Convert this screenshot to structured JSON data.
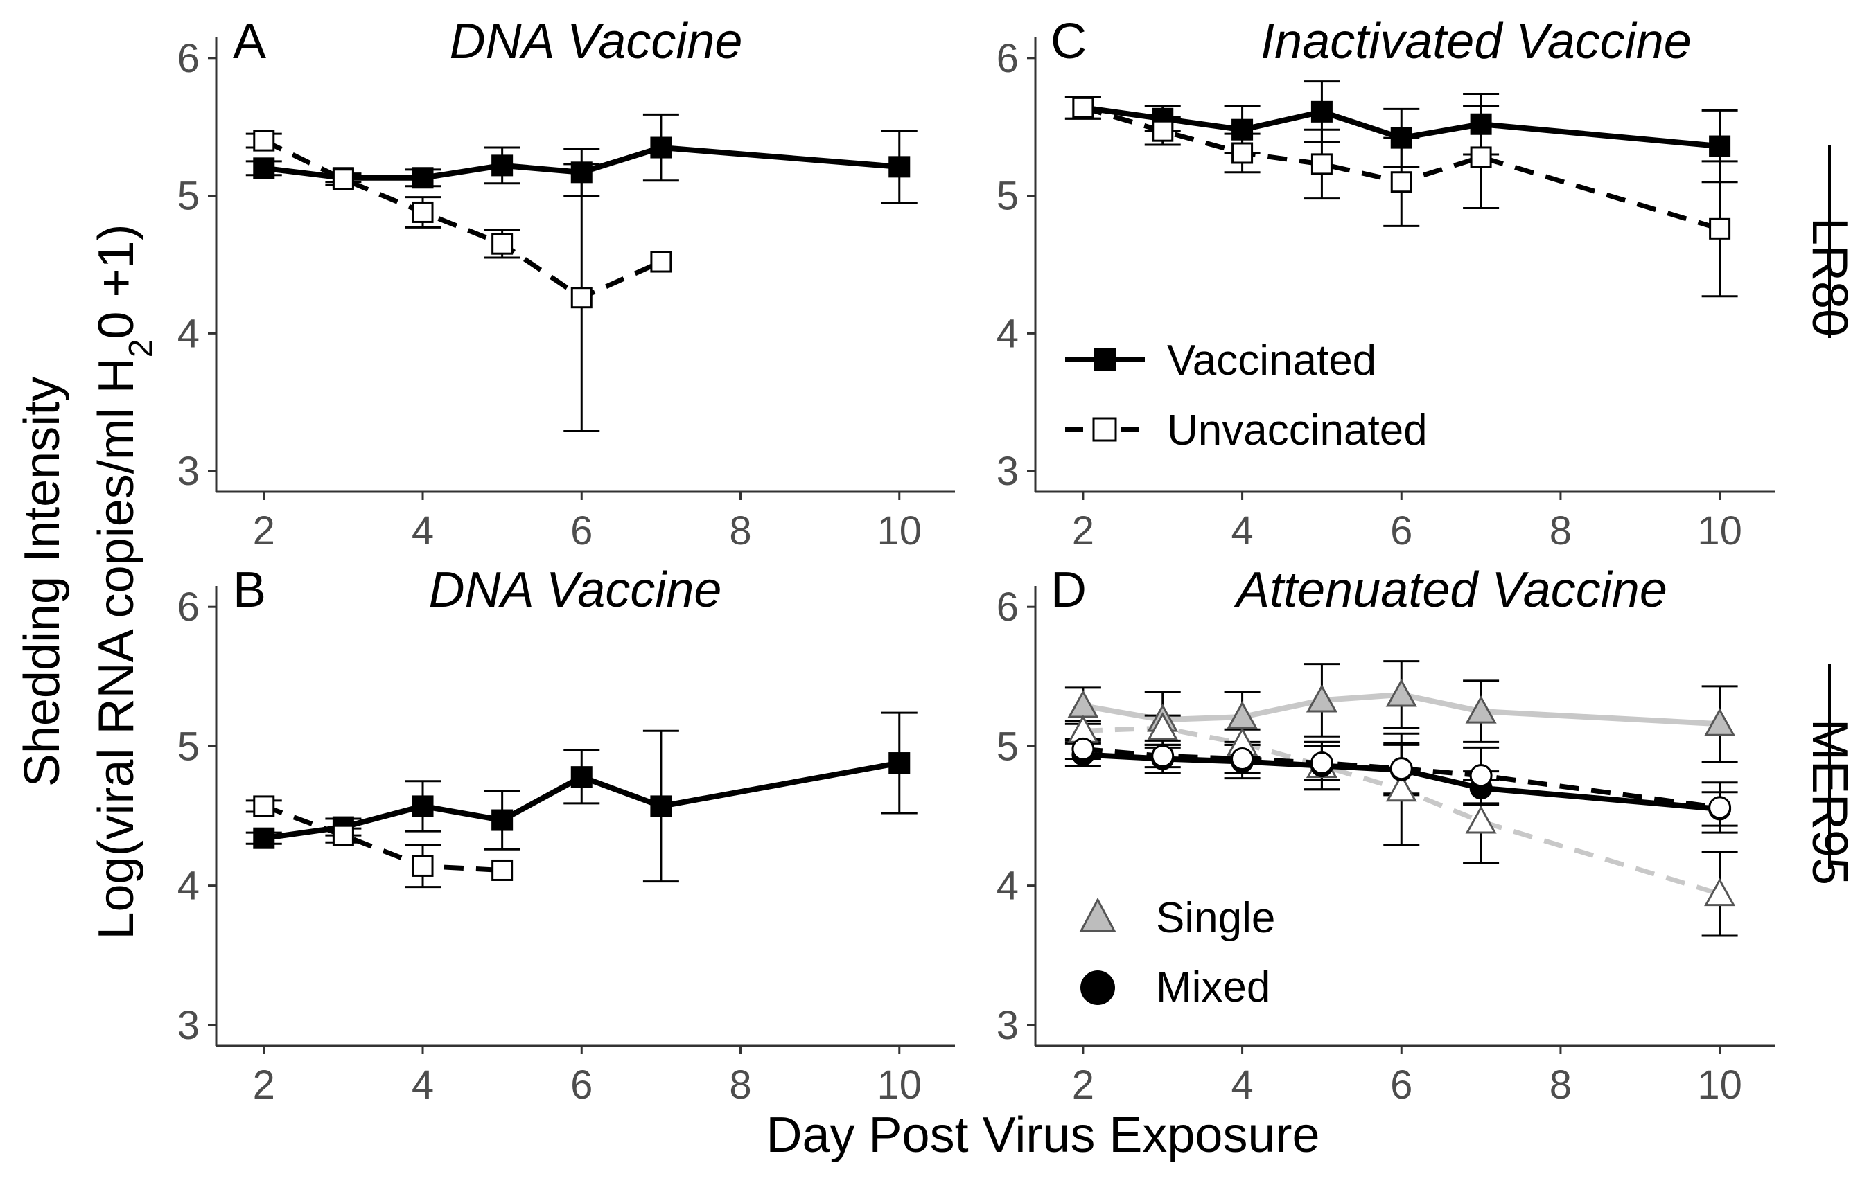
{
  "figure": {
    "xlabel": "Day Post Virus Exposure",
    "ylabel_line1": "Shedding Intensity",
    "ylabel_line2_prefix": "Log(viral RNA copies/ml H",
    "ylabel_line2_sub": "2",
    "ylabel_line2_suffix": "0 +1)",
    "row_labels": [
      "LR80",
      "MER95"
    ]
  },
  "legends": {
    "vaccination": {
      "vaccinated": "Vaccinated",
      "unvaccinated": "Unvaccinated"
    },
    "infection": {
      "single": "Single",
      "mixed": "Mixed"
    }
  },
  "colors": {
    "black": "#000000",
    "grey": "#bdbdbd",
    "lightgrey": "#c8c8c8",
    "white": "#ffffff"
  },
  "chart_data": [
    {
      "id": "A",
      "type": "line",
      "letter": "A",
      "title": "DNA Vaccine",
      "xlim": [
        1.4,
        10.7
      ],
      "ylim": [
        2.85,
        6.15
      ],
      "xticks": [
        2,
        4,
        6,
        8,
        10
      ],
      "yticks": [
        3,
        4,
        5,
        6
      ],
      "series": [
        {
          "name": "Vaccinated",
          "style": "vacc",
          "x": [
            2,
            3,
            4,
            5,
            6,
            7,
            10
          ],
          "y": [
            5.2,
            5.13,
            5.13,
            5.22,
            5.17,
            5.35,
            5.21
          ],
          "err": [
            0.05,
            0.03,
            0.06,
            0.13,
            0.17,
            0.24,
            0.26
          ]
        },
        {
          "name": "Unvaccinated",
          "style": "unvacc",
          "x": [
            2,
            3,
            4,
            5,
            6,
            7
          ],
          "y": [
            5.4,
            5.12,
            4.88,
            4.65,
            4.26,
            4.52
          ],
          "err": [
            0.05,
            0.04,
            0.11,
            0.1,
            0.97,
            0
          ]
        }
      ]
    },
    {
      "id": "B",
      "type": "line",
      "letter": "B",
      "title": "DNA Vaccine",
      "xlim": [
        1.4,
        10.7
      ],
      "ylim": [
        2.85,
        6.15
      ],
      "xticks": [
        2,
        4,
        6,
        8,
        10
      ],
      "yticks": [
        3,
        4,
        5,
        6
      ],
      "series": [
        {
          "name": "Vaccinated",
          "style": "vacc",
          "x": [
            2,
            3,
            4,
            5,
            6,
            7,
            10
          ],
          "y": [
            4.34,
            4.42,
            4.57,
            4.47,
            4.78,
            4.57,
            4.88
          ],
          "err": [
            0.04,
            0.06,
            0.18,
            0.21,
            0.19,
            0.54,
            0.36
          ]
        },
        {
          "name": "Unvaccinated",
          "style": "unvacc",
          "x": [
            2,
            3,
            4,
            5
          ],
          "y": [
            4.57,
            4.36,
            4.14,
            4.11
          ],
          "err": [
            0.04,
            0.05,
            0.15,
            0
          ]
        }
      ]
    },
    {
      "id": "C",
      "type": "line",
      "letter": "C",
      "title": "Inactivated Vaccine",
      "xlim": [
        1.4,
        10.7
      ],
      "ylim": [
        2.85,
        6.15
      ],
      "xticks": [
        2,
        4,
        6,
        8,
        10
      ],
      "yticks": [
        3,
        4,
        5,
        6
      ],
      "series": [
        {
          "name": "Vaccinated",
          "style": "vacc",
          "x": [
            2,
            3,
            4,
            5,
            6,
            7,
            10
          ],
          "y": [
            5.64,
            5.56,
            5.48,
            5.61,
            5.42,
            5.52,
            5.36
          ],
          "err": [
            0.08,
            0.09,
            0.17,
            0.22,
            0.21,
            0.22,
            0.26
          ]
        },
        {
          "name": "Unvaccinated",
          "style": "unvacc",
          "x": [
            2,
            3,
            4,
            5,
            6,
            7,
            10
          ],
          "y": [
            5.64,
            5.47,
            5.31,
            5.23,
            5.1,
            5.28,
            4.76
          ],
          "err": [
            0.08,
            0.1,
            0.14,
            0.25,
            0.32,
            0.37,
            0.49
          ]
        }
      ]
    },
    {
      "id": "D",
      "type": "line",
      "letter": "D",
      "title": "Attenuated Vaccine",
      "xlim": [
        1.4,
        10.7
      ],
      "ylim": [
        2.85,
        6.15
      ],
      "xticks": [
        2,
        4,
        6,
        8,
        10
      ],
      "yticks": [
        3,
        4,
        5,
        6
      ],
      "series": [
        {
          "name": "Single Vaccinated",
          "style": "single-vacc",
          "x": [
            2,
            3,
            4,
            5,
            6,
            7,
            10
          ],
          "y": [
            5.29,
            5.19,
            5.21,
            5.33,
            5.37,
            5.25,
            5.16
          ],
          "err": [
            0.13,
            0.2,
            0.18,
            0.26,
            0.24,
            0.22,
            0.27
          ]
        },
        {
          "name": "Single Unvaccinated",
          "style": "single-unvacc",
          "x": [
            2,
            3,
            4,
            5,
            6,
            7,
            10
          ],
          "y": [
            5.11,
            5.13,
            5.02,
            4.86,
            4.69,
            4.46,
            3.94
          ],
          "err": [
            0.07,
            0.09,
            0.1,
            0.17,
            0.4,
            0.3,
            0.3
          ]
        },
        {
          "name": "Mixed Vaccinated",
          "style": "mixed-vacc",
          "x": [
            2,
            3,
            4,
            5,
            6,
            7,
            10
          ],
          "y": [
            4.94,
            4.91,
            4.89,
            4.86,
            4.83,
            4.7,
            4.55
          ],
          "err": [
            0.08,
            0.1,
            0.12,
            0.17,
            0.18,
            0.12,
            0.12
          ]
        },
        {
          "name": "Mixed Unvaccinated",
          "style": "mixed-unvacc",
          "x": [
            2,
            3,
            4,
            5,
            6,
            7,
            10
          ],
          "y": [
            4.98,
            4.93,
            4.91,
            4.88,
            4.84,
            4.79,
            4.56
          ],
          "err": [
            0.07,
            0.08,
            0.1,
            0.12,
            0.18,
            0.2,
            0.18
          ]
        }
      ]
    }
  ]
}
